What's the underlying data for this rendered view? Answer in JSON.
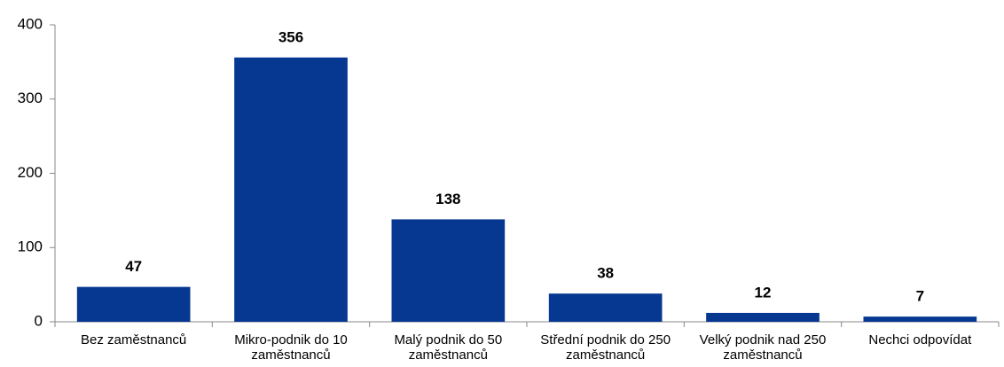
{
  "chart_data": {
    "type": "bar",
    "categories": [
      "Bez zaměstnanců",
      "Mikro-podnik do 10 zaměstnanců",
      "Malý podnik do 50 zaměstnanců",
      "Střední podnik do 250 zaměstnanců",
      "Velký podnik nad 250 zaměstnanců",
      "Nechci odpovídat"
    ],
    "values": [
      47,
      356,
      138,
      38,
      12,
      7
    ],
    "color": "#063791",
    "ylim": [
      0,
      400
    ],
    "yticks": [
      0,
      100,
      200,
      300,
      400
    ],
    "grid": false
  }
}
